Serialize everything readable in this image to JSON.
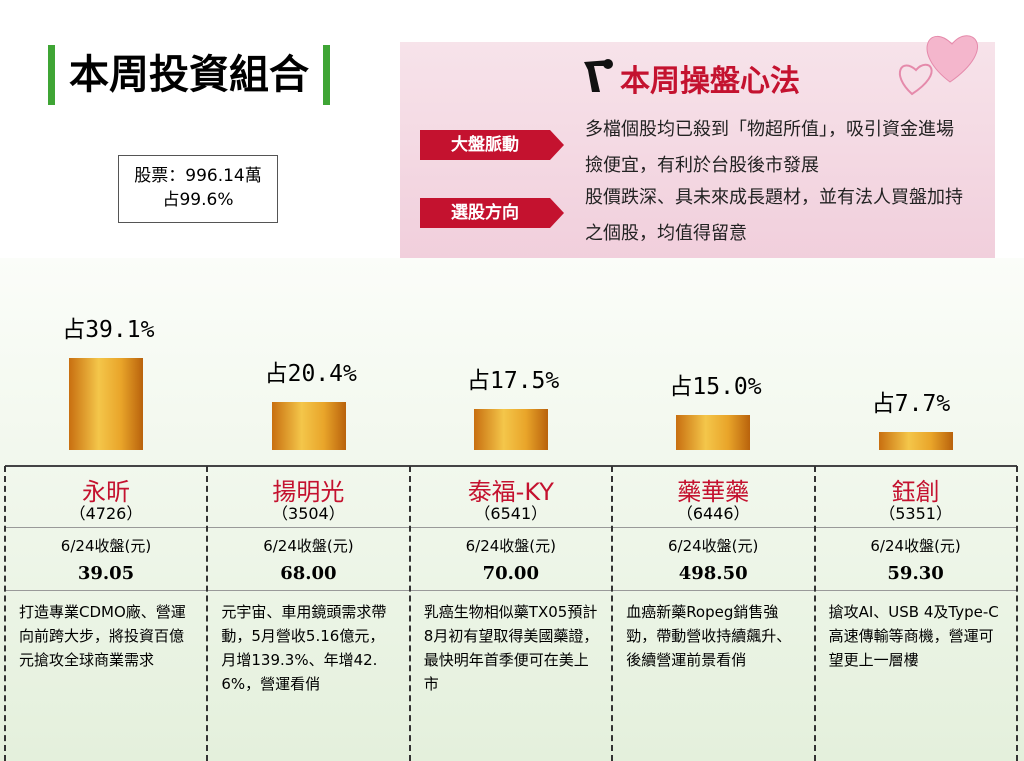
{
  "header": {
    "title": "本周投資組合"
  },
  "summary": {
    "line1": "股票：996.14萬",
    "line2": "占99.6%"
  },
  "strategy": {
    "title": "本周操盤心法",
    "items": [
      {
        "tag": "大盤脈動",
        "text": "多檔個股均已殺到「物超所值」，吸引資金進場撿便宜，有利於台股後市發展"
      },
      {
        "tag": "選股方向",
        "text": "股價跌深、具未來成長題材，並有法人買盤加持之個股，均值得留意"
      }
    ]
  },
  "chart_data": {
    "type": "bar",
    "color": "#d98a1e",
    "categories": [
      "永昕",
      "揚明光",
      "泰福-KY",
      "藥華藥",
      "鈺創"
    ],
    "values": [
      39.1,
      20.4,
      17.5,
      15.0,
      7.7
    ],
    "value_labels": [
      "占39.1%",
      "占20.4%",
      "占17.5%",
      "占15.0%",
      "占7.7%"
    ]
  },
  "stocks": [
    {
      "code": "（4726）",
      "price_label": "6/24收盤(元)",
      "price": "39.05",
      "desc": "打造專業CDMO廠、營運向前跨大步，將投資百億元搶攻全球商業需求"
    },
    {
      "code": "（3504）",
      "price_label": "6/24收盤(元)",
      "price": "68.00",
      "desc": "元宇宙、車用鏡頭需求帶動，5月營收5.16億元，月增139.3%、年增42.6%，營運看俏"
    },
    {
      "code": "（6541）",
      "price_label": "6/24收盤(元)",
      "price": "70.00",
      "desc": "乳癌生物相似藥TX05預計8月初有望取得美國藥證，最快明年首季便可在美上市"
    },
    {
      "code": "（6446）",
      "price_label": "6/24收盤(元)",
      "price": "498.50",
      "desc": "血癌新藥Ropeg銷售強勁，帶動營收持續飆升、後續營運前景看俏"
    },
    {
      "code": "（5351）",
      "price_label": "6/24收盤(元)",
      "price": "59.30",
      "desc": "搶攻AI、USB 4及Type-C高速傳輸等商機，營運可望更上一層樓"
    }
  ]
}
